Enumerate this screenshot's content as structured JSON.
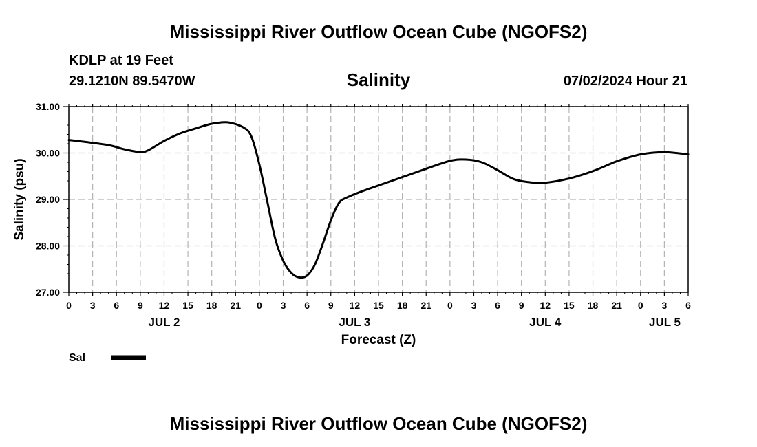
{
  "header": {
    "title": "Mississippi River Outflow Ocean Cube (NGOFS2)",
    "station": "KDLP at 19 Feet",
    "coords": "29.1210N  89.5470W",
    "variable": "Salinity",
    "datetime": "07/02/2024 Hour 21"
  },
  "footer": {
    "title": "Mississippi River Outflow Ocean Cube (NGOFS2)"
  },
  "colors": {
    "line": "#000000",
    "grid": "#b3b3b3"
  },
  "chart_data": {
    "type": "line",
    "title": "Salinity",
    "xlabel": "Forecast (Z)",
    "ylabel": "Salinity (psu)",
    "ylim": [
      27.0,
      31.0
    ],
    "y_ticks": [
      "27.00",
      "28.00",
      "29.00",
      "30.00",
      "31.00"
    ],
    "x_tick_labels": [
      "0",
      "3",
      "6",
      "9",
      "12",
      "15",
      "18",
      "21",
      "0",
      "3",
      "6",
      "9",
      "12",
      "15",
      "18",
      "21",
      "0",
      "3",
      "6",
      "9",
      "12",
      "15",
      "18",
      "21",
      "0",
      "3",
      "6"
    ],
    "day_labels": [
      "JUL 2",
      "JUL 3",
      "JUL 4",
      "JUL 5"
    ],
    "grid": true,
    "legend": {
      "position": "bottom-left",
      "entries": [
        {
          "name": "Sal"
        }
      ]
    },
    "series": [
      {
        "name": "Sal",
        "x": [
          "07/02 00Z",
          "07/02 02Z",
          "07/02 05Z",
          "07/02 07Z",
          "07/02 09Z",
          "07/02 10Z",
          "07/02 12Z",
          "07/02 14Z",
          "07/02 16Z",
          "07/02 18Z",
          "07/02 20Z",
          "07/02 22Z",
          "07/02 23Z",
          "07/03 00Z",
          "07/03 01Z",
          "07/03 02Z",
          "07/03 03Z",
          "07/03 04Z",
          "07/03 05Z",
          "07/03 06Z",
          "07/03 07Z",
          "07/03 08Z",
          "07/03 09Z",
          "07/03 10Z",
          "07/03 11Z",
          "07/03 13Z",
          "07/03 15Z",
          "07/03 18Z",
          "07/03 21Z",
          "07/04 00Z",
          "07/04 02Z",
          "07/04 04Z",
          "07/04 06Z",
          "07/04 08Z",
          "07/04 10Z",
          "07/04 12Z",
          "07/04 15Z",
          "07/04 18Z",
          "07/04 21Z",
          "07/05 00Z",
          "07/05 03Z",
          "07/05 06Z"
        ],
        "values": [
          30.28,
          30.24,
          30.17,
          30.08,
          30.02,
          30.06,
          30.26,
          30.42,
          30.53,
          30.63,
          30.66,
          30.55,
          30.35,
          29.75,
          28.95,
          28.15,
          27.68,
          27.42,
          27.32,
          27.36,
          27.6,
          28.05,
          28.55,
          28.92,
          29.04,
          29.18,
          29.3,
          29.48,
          29.66,
          29.83,
          29.86,
          29.8,
          29.63,
          29.44,
          29.37,
          29.36,
          29.45,
          29.61,
          29.82,
          29.97,
          30.02,
          29.97
        ]
      }
    ]
  }
}
